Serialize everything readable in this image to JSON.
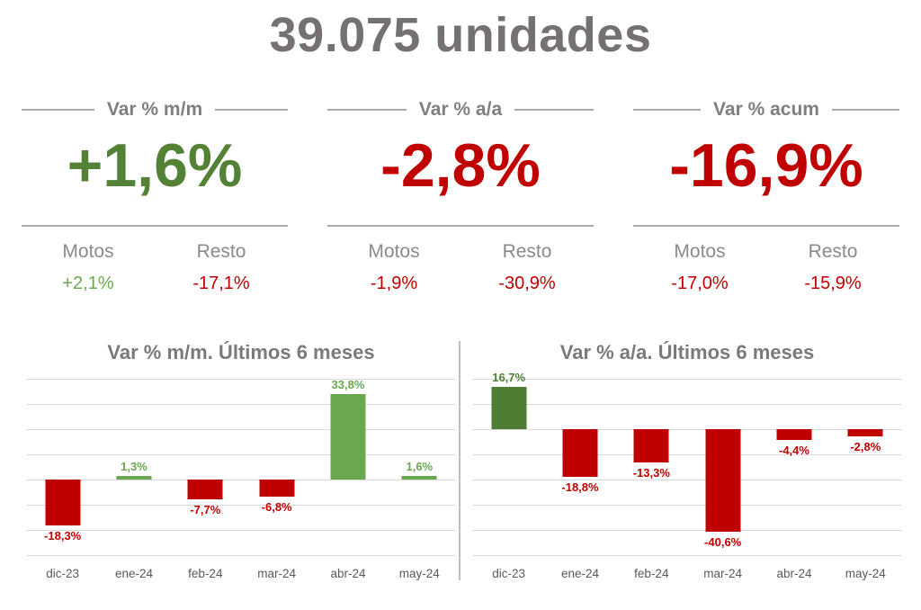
{
  "page": {
    "title": "39.075 unidades"
  },
  "colors": {
    "green_dark": "#538135",
    "green_bar_light": "#6aa84f",
    "green_bar_dark": "#4e7d33",
    "red": "#c00000",
    "gray_text": "#7f7f7f",
    "gray_title": "#767171",
    "axis_gray": "#595959",
    "grid_gray": "#d9d9d9"
  },
  "kpis": [
    {
      "label": "Var % m/m",
      "value": "+1,6%",
      "value_color": "#538135",
      "motos_label": "Motos",
      "motos_value": "+2,1%",
      "motos_color": "#6aa84f",
      "resto_label": "Resto",
      "resto_value": "-17,1%",
      "resto_color": "#c00000"
    },
    {
      "label": "Var % a/a",
      "value": "-2,8%",
      "value_color": "#c00000",
      "motos_label": "Motos",
      "motos_value": "-1,9%",
      "motos_color": "#c00000",
      "resto_label": "Resto",
      "resto_value": "-30,9%",
      "resto_color": "#c00000"
    },
    {
      "label": "Var % acum",
      "value": "-16,9%",
      "value_color": "#c00000",
      "motos_label": "Motos",
      "motos_value": "-17,0%",
      "motos_color": "#c00000",
      "resto_label": "Resto",
      "resto_value": "-15,9%",
      "resto_color": "#c00000"
    }
  ],
  "chart_data": [
    {
      "type": "bar",
      "title": "Var % m/m. Últimos 6 meses",
      "categories": [
        "dic-23",
        "ene-24",
        "feb-24",
        "mar-24",
        "abr-24",
        "may-24"
      ],
      "values": [
        -18.3,
        1.3,
        -7.7,
        -6.8,
        33.8,
        1.6
      ],
      "value_labels": [
        "-18,3%",
        "1,3%",
        "-7,7%",
        "-6,8%",
        "33,8%",
        "1,6%"
      ],
      "bar_colors": [
        "#c00000",
        "#6aa84f",
        "#c00000",
        "#c00000",
        "#6aa84f",
        "#6aa84f"
      ],
      "xlabel": "",
      "ylabel": "",
      "ylim": [
        -30,
        40
      ],
      "grid_step": 10,
      "grid": true,
      "legend": false
    },
    {
      "type": "bar",
      "title": "Var % a/a. Últimos 6 meses",
      "categories": [
        "dic-23",
        "ene-24",
        "feb-24",
        "mar-24",
        "abr-24",
        "may-24"
      ],
      "values": [
        16.7,
        -18.8,
        -13.3,
        -40.6,
        -4.4,
        -2.8
      ],
      "value_labels": [
        "16,7%",
        "-18,8%",
        "-13,3%",
        "-40,6%",
        "-4,4%",
        "-2,8%"
      ],
      "bar_colors": [
        "#4e7d33",
        "#c00000",
        "#c00000",
        "#c00000",
        "#c00000",
        "#c00000"
      ],
      "xlabel": "",
      "ylabel": "",
      "ylim": [
        -50,
        20
      ],
      "grid_step": 10,
      "grid": true,
      "legend": false
    }
  ]
}
